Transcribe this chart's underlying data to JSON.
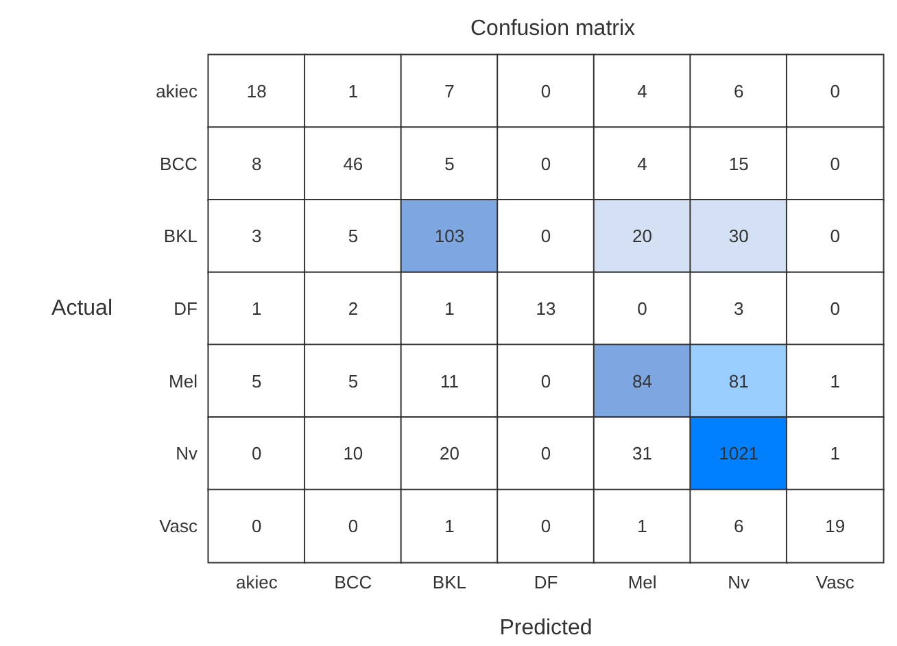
{
  "chart_data": {
    "type": "heatmap",
    "title": "Confusion matrix",
    "xlabel": "Predicted",
    "ylabel": "Actual",
    "categories": [
      "akiec",
      "BCC",
      "BKL",
      "DF",
      "Mel",
      "Nv",
      "Vasc"
    ],
    "y_categories": [
      "akiec",
      "BCC",
      "BKL",
      "DF",
      "Mel",
      "Nv",
      "Vasc"
    ],
    "cells": [
      [
        18,
        1,
        7,
        0,
        4,
        6,
        0
      ],
      [
        8,
        46,
        5,
        0,
        4,
        15,
        0
      ],
      [
        3,
        5,
        103,
        0,
        20,
        30,
        0
      ],
      [
        1,
        2,
        1,
        13,
        0,
        3,
        0
      ],
      [
        5,
        5,
        11,
        0,
        84,
        81,
        1
      ],
      [
        0,
        10,
        20,
        0,
        31,
        1021,
        1
      ],
      [
        0,
        0,
        1,
        0,
        1,
        6,
        19
      ]
    ],
    "colors": [
      [
        null,
        null,
        null,
        null,
        null,
        null,
        null
      ],
      [
        null,
        null,
        null,
        null,
        null,
        null,
        null
      ],
      [
        null,
        null,
        "#7ea6e0",
        null,
        "#d4e1f5",
        "#d4e1f5",
        null
      ],
      [
        null,
        null,
        null,
        null,
        null,
        null,
        null
      ],
      [
        null,
        null,
        null,
        null,
        "#7ea6e0",
        "#99ccff",
        null
      ],
      [
        null,
        null,
        null,
        null,
        null,
        "#007fff",
        null
      ],
      [
        null,
        null,
        null,
        null,
        null,
        null,
        null
      ]
    ],
    "data_labels": true
  }
}
